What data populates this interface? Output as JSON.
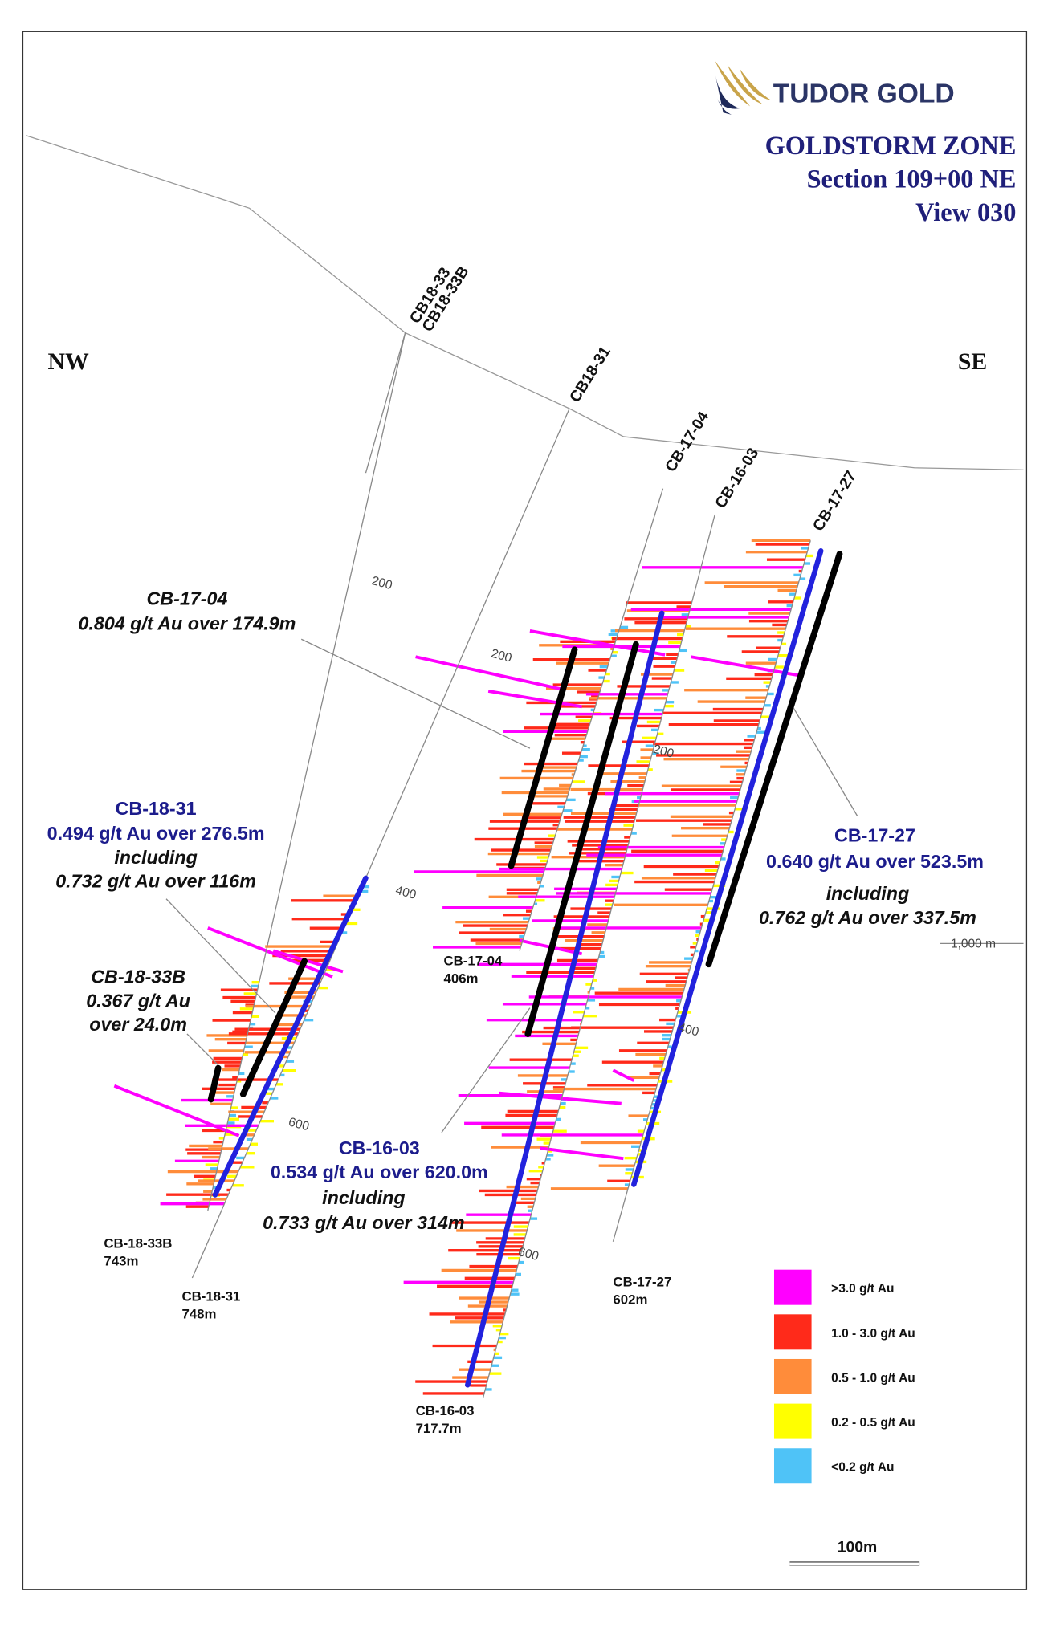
{
  "header": {
    "logo": "TUDOR GOLD",
    "title": [
      "GOLDSTORM ZONE",
      "Section 109+00 NE",
      "View 030"
    ]
  },
  "orientation": {
    "left": "NW",
    "right": "SE"
  },
  "collar_labels": [
    "CB18-33",
    "CB18-33B",
    "CB18-31",
    "CB-17-04",
    "CB-16-03",
    "CB-17-27"
  ],
  "depth_labels": [
    "200",
    "200",
    "200",
    "400",
    "400",
    "600",
    "600",
    "1,000 m"
  ],
  "annotations": [
    {
      "lines": [
        "CB-17-04",
        "0.804 g/t Au over 174.9m"
      ]
    },
    {
      "lines": [
        "CB-18-31",
        "0.494 g/t Au over 276.5m",
        "including",
        "0.732 g/t Au over 116m"
      ]
    },
    {
      "lines": [
        "CB-18-33B",
        "0.367 g/t Au",
        "over 24.0m"
      ]
    },
    {
      "lines": [
        "CB-16-03",
        "0.534 g/t Au over 620.0m",
        "including",
        "0.733 g/t Au over 314m"
      ]
    },
    {
      "lines": [
        "CB-17-27",
        "0.640 g/t Au over 523.5m",
        "including",
        "0.762 g/t Au over 337.5m"
      ]
    }
  ],
  "end_labels": [
    {
      "name": "CB-18-33B",
      "depth": "743m"
    },
    {
      "name": "CB-18-31",
      "depth": "748m"
    },
    {
      "name": "CB-17-04",
      "depth": "406m"
    },
    {
      "name": "CB-16-03",
      "depth": "717.7m"
    },
    {
      "name": "CB-17-27",
      "depth": "602m"
    }
  ],
  "legend": [
    {
      "label": ">3.0 g/t Au",
      "color": "#ff00ff"
    },
    {
      "label": "1.0 - 3.0 g/t Au",
      "color": "#ff2a1a"
    },
    {
      "label": "0.5 - 1.0 g/t Au",
      "color": "#ff8c3a"
    },
    {
      "label": "0.2 - 0.5 g/t Au",
      "color": "#ffff00"
    },
    {
      "label": "<0.2 g/t Au",
      "color": "#4fc3f7"
    }
  ],
  "scale": "100m"
}
